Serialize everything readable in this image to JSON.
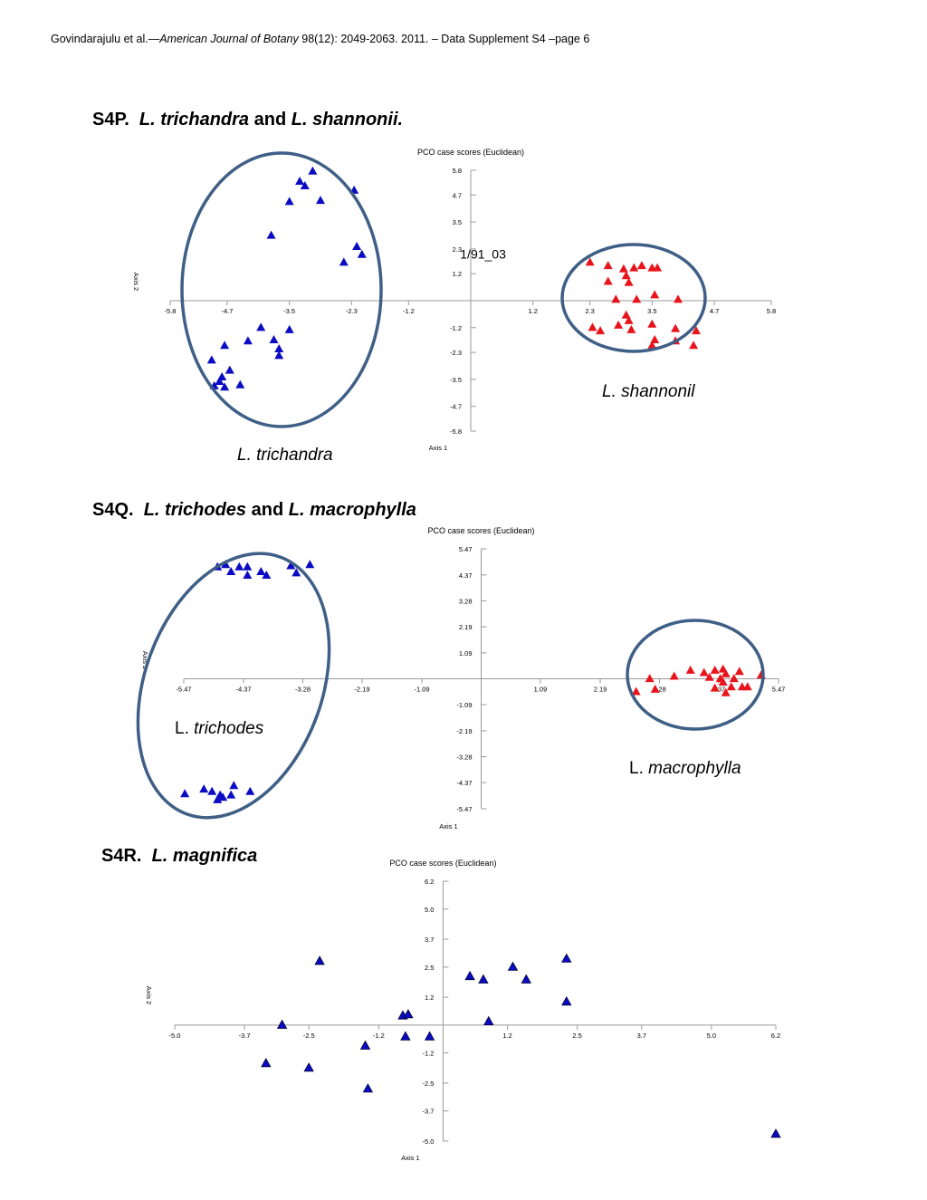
{
  "header": {
    "authors": "Govindarajulu et al.—",
    "journal": "American Journal of Botany",
    "citation": " 98(12): 2049-2063. 2011. – Data Supplement S4 –page 6"
  },
  "sections": {
    "p": {
      "code": "S4P.",
      "species1": "L. trichandra",
      "conj": "and",
      "species2": "L. shannonii."
    },
    "q": {
      "code": "S4Q.",
      "species1": "L. trichodes",
      "conj": "and",
      "species2": "L. macrophylla"
    },
    "r": {
      "code": "S4R.",
      "species1": "L. magnifica"
    }
  },
  "colors": {
    "blue": "#0b0bc4",
    "red": "#e8141c",
    "ellipse": "#3f5f86",
    "axis": "#999999"
  },
  "chart_data": [
    {
      "type": "scatter",
      "title": "PCO case scores (Euclidean)",
      "xlabel": "Axis 1",
      "ylabel": "Axis 2",
      "xlim": [
        -5.8,
        5.8
      ],
      "ylim": [
        -5.8,
        5.8
      ],
      "xticks": [
        "-5.8",
        "-4.7",
        "-3.5",
        "-2.3",
        "-1.2",
        "1.2",
        "2.3",
        "3.5",
        "4.7",
        "5.8"
      ],
      "yticks": [
        "5.8",
        "4.7",
        "3.5",
        "2.3",
        "1.2",
        "-1.2",
        "-2.3",
        "-3.5",
        "-4.7",
        "-5.8"
      ],
      "point_label": {
        "text": "1/91_03",
        "x": -0.1,
        "y": 1.55
      },
      "series": [
        {
          "color": "blue",
          "points": [
            [
              -3.05,
              5.75
            ],
            [
              -3.3,
              5.3
            ],
            [
              -3.2,
              5.1
            ],
            [
              -2.25,
              4.9
            ],
            [
              -3.5,
              4.4
            ],
            [
              -2.9,
              4.45
            ],
            [
              -3.85,
              2.9
            ],
            [
              -2.2,
              2.4
            ],
            [
              -2.1,
              2.05
            ],
            [
              -2.45,
              1.7
            ],
            [
              -4.05,
              -1.2
            ],
            [
              -3.5,
              -1.3
            ],
            [
              -4.3,
              -1.8
            ],
            [
              -3.8,
              -1.75
            ],
            [
              -4.75,
              -2.0
            ],
            [
              -3.7,
              -2.15
            ],
            [
              -3.7,
              -2.45
            ],
            [
              -5.0,
              -2.65
            ],
            [
              -4.65,
              -3.1
            ],
            [
              -4.8,
              -3.4
            ],
            [
              -4.85,
              -3.6
            ],
            [
              -4.95,
              -3.8
            ],
            [
              -4.45,
              -3.75
            ],
            [
              -4.75,
              -3.85
            ]
          ]
        },
        {
          "color": "red",
          "points": [
            [
              2.3,
              1.7
            ],
            [
              2.65,
              1.55
            ],
            [
              2.95,
              1.4
            ],
            [
              3.15,
              1.45
            ],
            [
              3.3,
              1.55
            ],
            [
              3.5,
              1.45
            ],
            [
              3.6,
              1.45
            ],
            [
              3.0,
              1.1
            ],
            [
              2.65,
              0.85
            ],
            [
              3.05,
              0.8
            ],
            [
              3.55,
              0.25
            ],
            [
              2.8,
              0.05
            ],
            [
              3.2,
              0.05
            ],
            [
              4.0,
              0.05
            ],
            [
              3.0,
              -0.65
            ],
            [
              3.05,
              -0.9
            ],
            [
              2.85,
              -1.1
            ],
            [
              2.35,
              -1.2
            ],
            [
              2.5,
              -1.35
            ],
            [
              3.1,
              -1.3
            ],
            [
              3.5,
              -1.05
            ],
            [
              3.95,
              -1.25
            ],
            [
              4.35,
              -1.35
            ],
            [
              3.55,
              -1.75
            ],
            [
              3.95,
              -1.8
            ],
            [
              3.5,
              -2.0
            ],
            [
              4.3,
              -2.0
            ]
          ]
        }
      ],
      "annotations": [
        {
          "text": "L. trichandra",
          "italic_part": "L. trichandra"
        },
        {
          "text": "L. shannonil",
          "italic_part": "L. shannonil"
        }
      ]
    },
    {
      "type": "scatter",
      "title": "PCO case scores (Euclidean)",
      "xlabel": "Axis 1",
      "ylabel": "Axis 2",
      "xlim": [
        -5.47,
        5.47
      ],
      "ylim": [
        -5.47,
        5.47
      ],
      "xticks": [
        "-5.47",
        "-4.37",
        "-3.28",
        "-2.19",
        "-1.09",
        "1.09",
        "2.19",
        "3.28",
        "4.37",
        "5.47"
      ],
      "yticks": [
        "5.47",
        "4.37",
        "3.28",
        "2.19",
        "1.09",
        "-1.09",
        "-2.19",
        "-3.28",
        "-4.37",
        "-5.47"
      ],
      "series": [
        {
          "color": "blue",
          "points": [
            [
              -3.15,
              4.8
            ],
            [
              -4.85,
              4.7
            ],
            [
              -4.45,
              4.7
            ],
            [
              -4.7,
              4.8
            ],
            [
              -4.3,
              4.7
            ],
            [
              -4.05,
              4.5
            ],
            [
              -3.95,
              4.35
            ],
            [
              -4.3,
              4.35
            ],
            [
              -4.6,
              4.5
            ],
            [
              -3.5,
              4.75
            ],
            [
              -3.4,
              4.45
            ],
            [
              -4.95,
              -4.75
            ],
            [
              -5.1,
              -4.65
            ],
            [
              -4.8,
              -4.9
            ],
            [
              -4.75,
              -5.0
            ],
            [
              -4.6,
              -4.9
            ],
            [
              -4.85,
              -5.1
            ],
            [
              -4.55,
              -4.5
            ],
            [
              -4.25,
              -4.75
            ],
            [
              -5.45,
              -4.85
            ]
          ]
        },
        {
          "color": "red",
          "points": [
            [
              3.55,
              0.1
            ],
            [
              3.85,
              0.35
            ],
            [
              4.1,
              0.25
            ],
            [
              4.3,
              0.35
            ],
            [
              4.5,
              0.2
            ],
            [
              4.65,
              0.0
            ],
            [
              4.75,
              0.3
            ],
            [
              4.4,
              0.0
            ],
            [
              4.2,
              0.05
            ],
            [
              4.45,
              -0.15
            ],
            [
              4.6,
              -0.35
            ],
            [
              4.8,
              -0.35
            ],
            [
              4.9,
              -0.35
            ],
            [
              4.5,
              -0.6
            ],
            [
              5.15,
              0.15
            ],
            [
              3.1,
              0.0
            ],
            [
              3.2,
              -0.45
            ],
            [
              2.85,
              -0.55
            ],
            [
              4.3,
              -0.4
            ],
            [
              4.45,
              0.4
            ]
          ]
        }
      ],
      "annotations": [
        {
          "prefix": "L. ",
          "italic_part": "trichodes"
        },
        {
          "prefix": "L. ",
          "italic_part": "macrophylla"
        }
      ]
    },
    {
      "type": "scatter",
      "title": "PCO case scores (Euclidean)",
      "xlabel": "Axis 1",
      "ylabel": "Axis 2",
      "xlim": [
        -5.0,
        6.2
      ],
      "ylim": [
        -5.0,
        6.2
      ],
      "xticks": [
        "-5.0",
        "-3.7",
        "-2.5",
        "-1.2",
        "1.2",
        "2.5",
        "3.7",
        "5.0",
        "6.2"
      ],
      "yticks": [
        "6.2",
        "5.0",
        "3.7",
        "2.5",
        "1.2",
        "-1.2",
        "-2.5",
        "-3.7",
        "-5.0"
      ],
      "series": [
        {
          "color": "blue",
          "points": [
            [
              -2.3,
              2.75
            ],
            [
              2.3,
              2.85
            ],
            [
              0.5,
              2.1
            ],
            [
              0.75,
              1.95
            ],
            [
              1.3,
              2.5
            ],
            [
              1.55,
              1.95
            ],
            [
              2.3,
              1.0
            ],
            [
              -0.75,
              0.4
            ],
            [
              -0.65,
              0.45
            ],
            [
              0.85,
              0.15
            ],
            [
              -3.0,
              0.0
            ],
            [
              -0.7,
              -0.5
            ],
            [
              -0.25,
              -0.5
            ],
            [
              -1.45,
              -0.9
            ],
            [
              -3.3,
              -1.65
            ],
            [
              -2.5,
              -1.85
            ],
            [
              -1.4,
              -2.75
            ],
            [
              6.2,
              -4.7
            ]
          ]
        }
      ]
    }
  ]
}
